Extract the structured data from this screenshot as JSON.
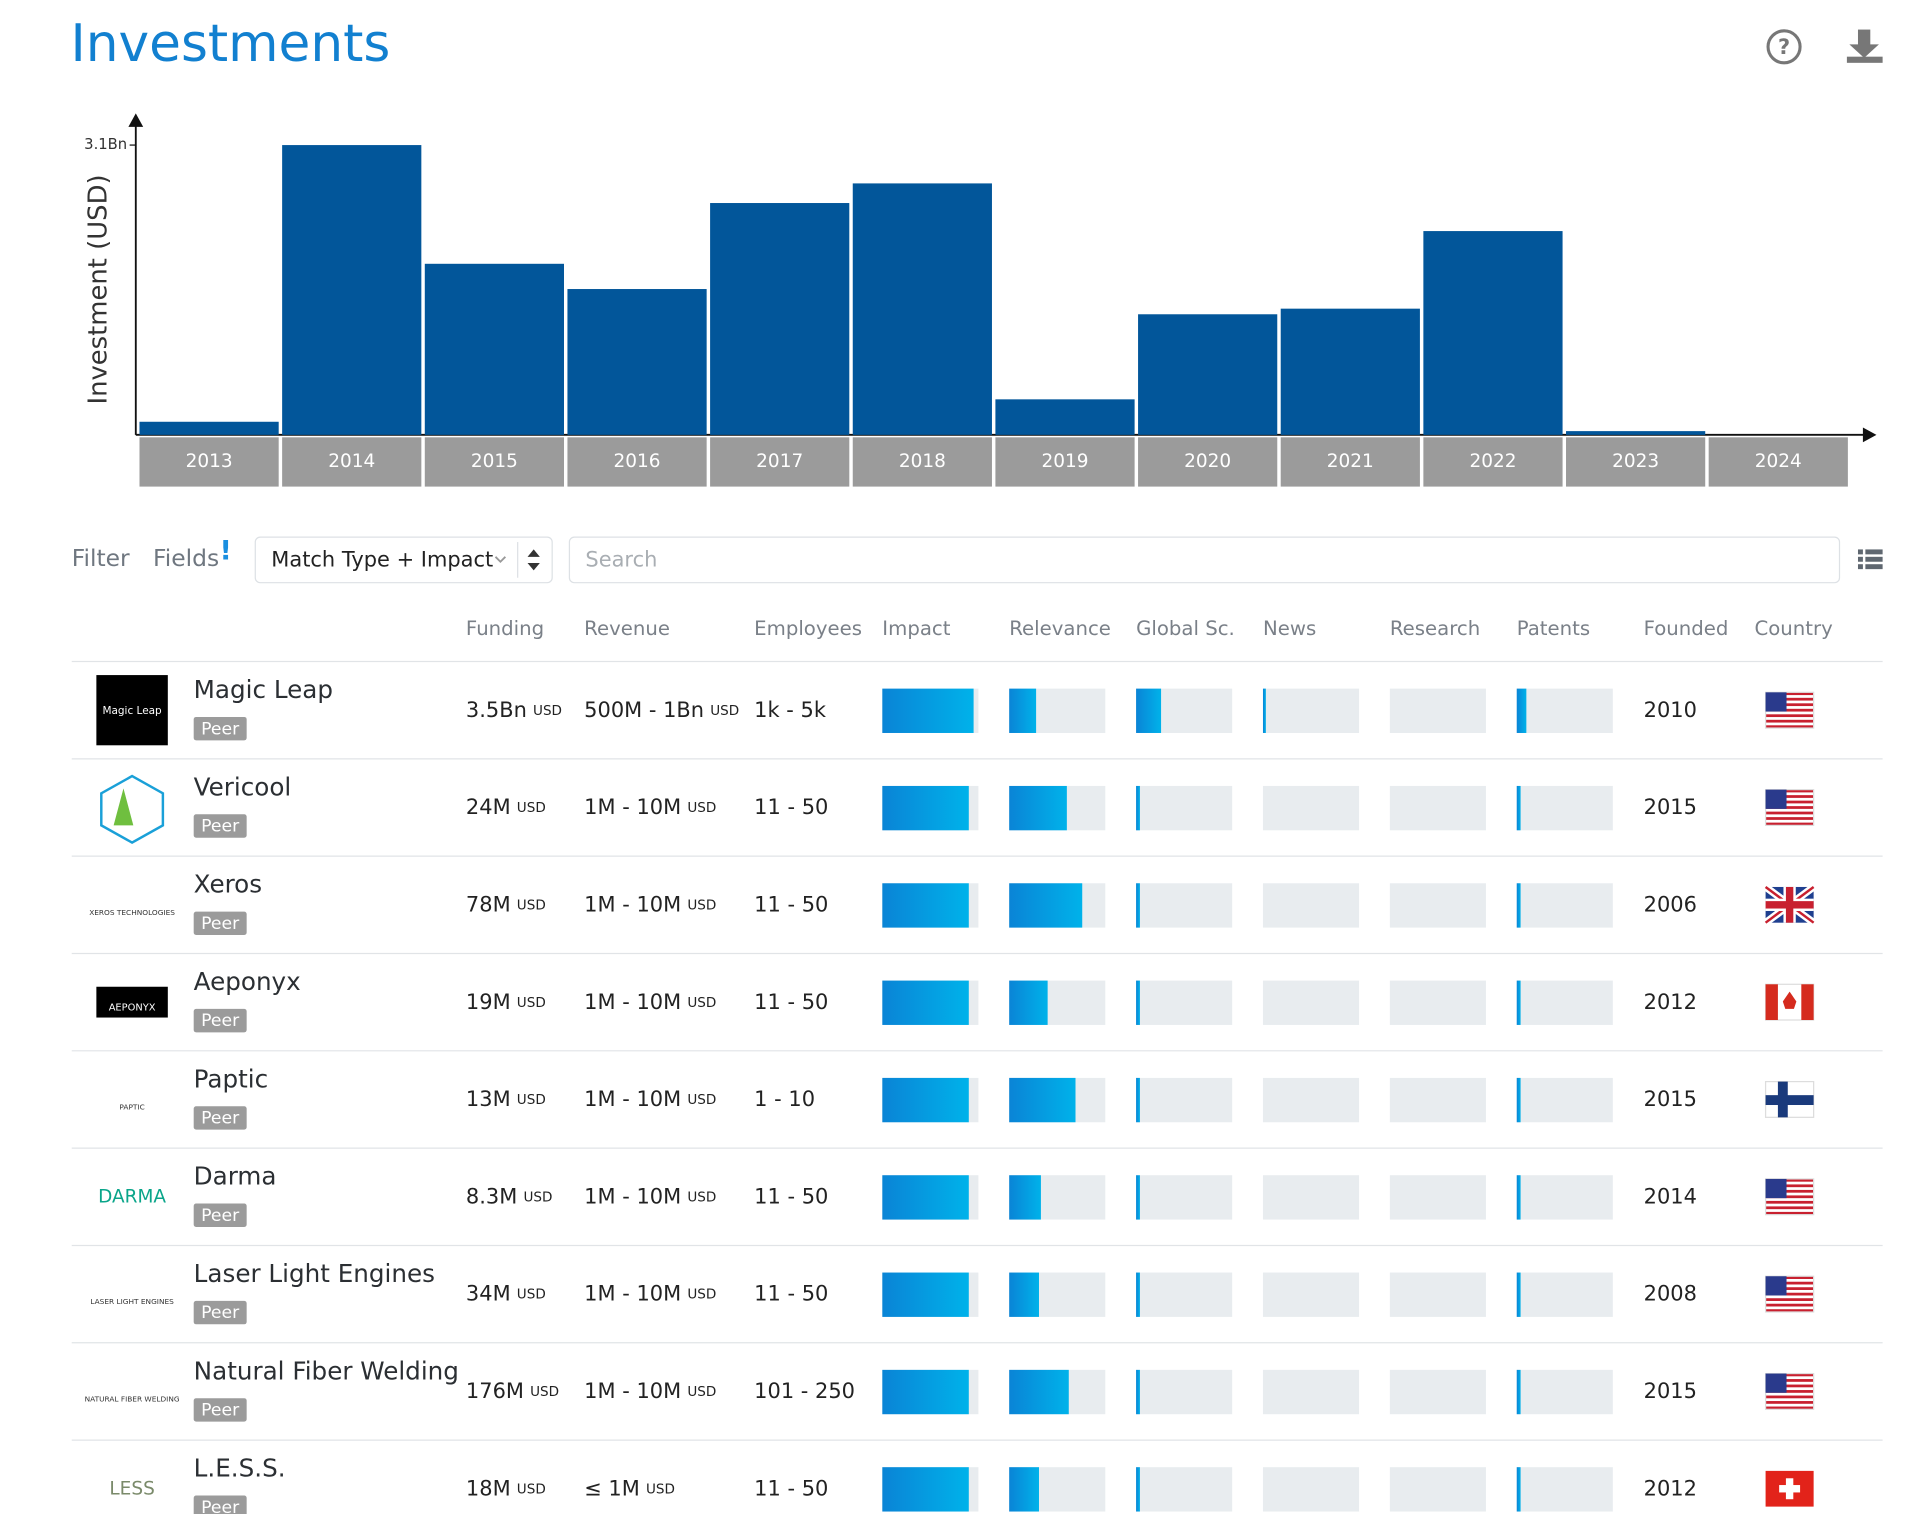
{
  "header": {
    "title": "Investments"
  },
  "chart_data": {
    "type": "bar",
    "y_label": "Investment (USD)",
    "categories": [
      "2013",
      "2014",
      "2015",
      "2016",
      "2017",
      "2018",
      "2019",
      "2020",
      "2021",
      "2022",
      "2023",
      "2024"
    ],
    "values": [
      0.14,
      3.1,
      1.83,
      1.56,
      2.48,
      2.69,
      0.38,
      1.29,
      1.35,
      2.18,
      0.04,
      0
    ],
    "color": "#02569a",
    "ylim": [
      0,
      3.4
    ],
    "yticks": [
      {
        "value": 3.1,
        "label": "3.1Bn"
      }
    ]
  },
  "toolbar": {
    "filter": "Filter",
    "fields": "Fields",
    "fields_badge": "!",
    "sort": "Match Type + Impact",
    "search_placeholder": "Search"
  },
  "table": {
    "columns": [
      "Funding",
      "Revenue",
      "Employees",
      "Impact",
      "Relevance",
      "Global Sc.",
      "News",
      "Research",
      "Patents",
      "Founded",
      "Country"
    ],
    "rows": [
      {
        "logo": "Magic Leap",
        "name": "Magic Leap",
        "tag": "Peer",
        "funding": "3.5Bn",
        "funding_unit": "USD",
        "revenue": "500M - 1Bn",
        "revenue_unit": "USD",
        "employees": "1k - 5k",
        "scores": [
          95,
          28,
          26,
          3,
          0,
          10
        ],
        "founded": 2010
      },
      {
        "name": "Vericool",
        "tag": "Peer",
        "funding": "24M",
        "funding_unit": "USD",
        "revenue": "1M - 10M",
        "revenue_unit": "USD",
        "employees": "11 - 50",
        "scores": [
          90,
          60,
          4,
          0,
          0,
          4
        ],
        "founded": 2015
      },
      {
        "logo": "XEROS TECHNOLOGIES",
        "name": "Xeros",
        "tag": "Peer",
        "funding": "78M",
        "funding_unit": "USD",
        "revenue": "1M - 10M",
        "revenue_unit": "USD",
        "employees": "11 - 50",
        "scores": [
          90,
          76,
          4,
          0,
          0,
          4
        ],
        "founded": 2006
      },
      {
        "logo": "AEPONYX",
        "name": "Aeponyx",
        "tag": "Peer",
        "funding": "19M",
        "funding_unit": "USD",
        "revenue": "1M - 10M",
        "revenue_unit": "USD",
        "employees": "11 - 50",
        "scores": [
          90,
          40,
          4,
          0,
          0,
          4
        ],
        "founded": 2012
      },
      {
        "logo": "PAPTIC",
        "name": "Paptic",
        "tag": "Peer",
        "funding": "13M",
        "funding_unit": "USD",
        "revenue": "1M - 10M",
        "revenue_unit": "USD",
        "employees": "1 - 10",
        "scores": [
          90,
          69,
          4,
          0,
          0,
          4
        ],
        "founded": 2015
      },
      {
        "logo": "DARMA",
        "name": "Darma",
        "tag": "Peer",
        "funding": "8.3M",
        "funding_unit": "USD",
        "revenue": "1M - 10M",
        "revenue_unit": "USD",
        "employees": "11 - 50",
        "scores": [
          90,
          33,
          4,
          0,
          0,
          4
        ],
        "founded": 2014
      },
      {
        "logo": "LASER LIGHT ENGINES",
        "name": "Laser Light Engines",
        "tag": "Peer",
        "funding": "34M",
        "funding_unit": "USD",
        "revenue": "1M - 10M",
        "revenue_unit": "USD",
        "employees": "11 - 50",
        "scores": [
          90,
          31,
          4,
          0,
          0,
          4
        ],
        "founded": 2008
      },
      {
        "logo": "NATURAL FIBER WELDING",
        "name": "Natural Fiber Welding",
        "tag": "Peer",
        "funding": "176M",
        "funding_unit": "USD",
        "revenue": "1M - 10M",
        "revenue_unit": "USD",
        "employees": "101 - 250",
        "scores": [
          90,
          62,
          4,
          0,
          0,
          4
        ],
        "founded": 2015
      },
      {
        "logo": "LESS",
        "name": "L.E.S.S.",
        "tag": "Peer",
        "funding": "18M",
        "funding_unit": "USD",
        "revenue": "≤ 1M",
        "revenue_unit": "USD",
        "employees": "11 - 50",
        "scores": [
          90,
          31,
          4,
          0,
          0,
          4
        ],
        "founded": 2012
      }
    ]
  }
}
